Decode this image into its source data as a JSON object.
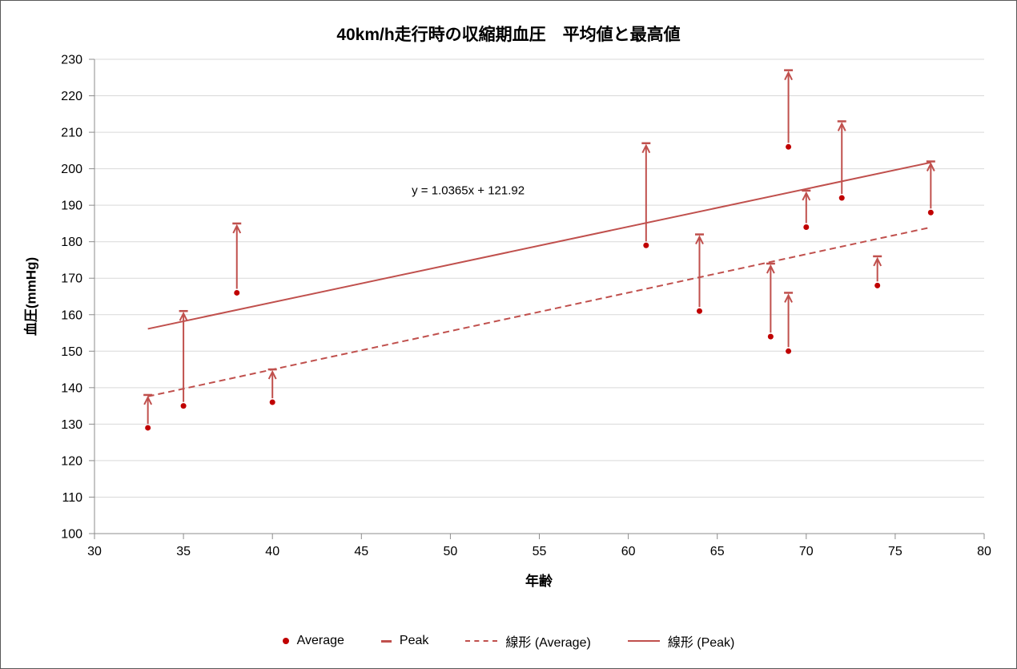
{
  "chart_data": {
    "type": "scatter",
    "title": "40km/h走行時の収縮期血圧　平均値と最高値",
    "xlabel": "年齢",
    "ylabel": "血圧(mmHg)",
    "xlim": [
      30,
      80
    ],
    "ylim": [
      100,
      230
    ],
    "x_ticks": [
      30,
      35,
      40,
      45,
      50,
      55,
      60,
      65,
      70,
      75,
      80
    ],
    "y_ticks": [
      100,
      110,
      120,
      130,
      140,
      150,
      160,
      170,
      180,
      190,
      200,
      210,
      220,
      230
    ],
    "grid": "horizontal-only",
    "equation_label": {
      "text": "y = 1.0365x + 121.92",
      "x": 51,
      "y": 194
    },
    "points": [
      {
        "age": 33,
        "average": 129,
        "peak": 138
      },
      {
        "age": 35,
        "average": 135,
        "peak": 161
      },
      {
        "age": 38,
        "average": 166,
        "peak": 185
      },
      {
        "age": 40,
        "average": 136,
        "peak": 145
      },
      {
        "age": 61,
        "average": 179,
        "peak": 207
      },
      {
        "age": 64,
        "average": 161,
        "peak": 182
      },
      {
        "age": 68,
        "average": 154,
        "peak": 174
      },
      {
        "age": 69,
        "average": 206,
        "peak": 227
      },
      {
        "age": 69,
        "average": 150,
        "peak": 166
      },
      {
        "age": 70,
        "average": 184,
        "peak": 194
      },
      {
        "age": 72,
        "average": 192,
        "peak": 213
      },
      {
        "age": 74,
        "average": 168,
        "peak": 176
      },
      {
        "age": 77,
        "average": 188,
        "peak": 202
      }
    ],
    "trendlines": [
      {
        "name": "線形 (Average)",
        "style": "dashed",
        "slope": 1.0533,
        "intercept": 102.84,
        "x_start": 33,
        "x_end": 77
      },
      {
        "name": "線形 (Peak)",
        "style": "solid",
        "slope": 1.0365,
        "intercept": 121.92,
        "x_start": 33,
        "x_end": 77
      }
    ],
    "legend": {
      "position": "bottom",
      "items": [
        {
          "label": "Average",
          "marker": "dot"
        },
        {
          "label": "Peak",
          "marker": "dash"
        },
        {
          "label": "線形 (Average)",
          "marker": "dashed-line"
        },
        {
          "label": "線形 (Peak)",
          "marker": "solid-line"
        }
      ]
    },
    "colors": {
      "series": "#C0504D",
      "marker_fill": "#C00000",
      "gridline": "#D9D9D9",
      "axis_line": "#8C8C8C",
      "text": "#000000"
    }
  }
}
